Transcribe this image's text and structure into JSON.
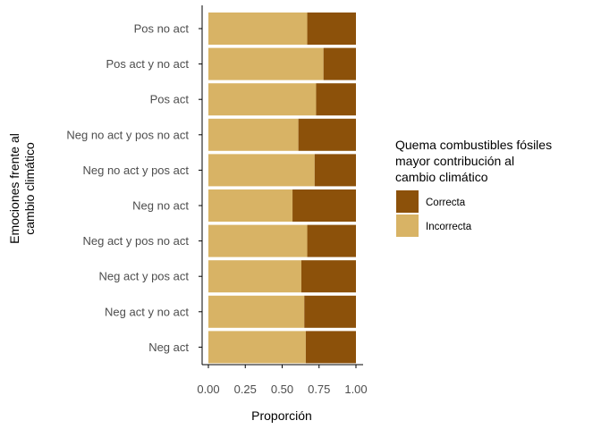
{
  "chart_data": {
    "type": "bar",
    "orientation": "horizontal",
    "stacked": true,
    "categories": [
      "Pos no act",
      "Pos act y no act",
      "Pos act",
      "Neg no act y pos no act",
      "Neg no act y pos act",
      "Neg no act",
      "Neg act y pos no act",
      "Neg act y pos act",
      "Neg act y no act",
      "Neg act"
    ],
    "series": [
      {
        "name": "Incorrecta",
        "color": "#D8B365",
        "values": [
          0.67,
          0.78,
          0.73,
          0.61,
          0.72,
          0.57,
          0.67,
          0.63,
          0.65,
          0.66
        ]
      },
      {
        "name": "Correcta",
        "color": "#8C510A",
        "values": [
          0.33,
          0.22,
          0.27,
          0.39,
          0.28,
          0.43,
          0.33,
          0.37,
          0.35,
          0.34
        ]
      }
    ],
    "xlabel": "Proporción",
    "ylabel_lines": [
      "Emociones frente al",
      "cambio climático"
    ],
    "xlim": [
      0,
      1
    ],
    "xticks": [
      "0.00",
      "0.25",
      "0.50",
      "0.75",
      "1.00"
    ],
    "grid": false,
    "legend": {
      "placement": "right",
      "title_lines": [
        "Quema combustibles fósiles",
        "mayor contribución al",
        "cambio climático"
      ],
      "entries": [
        {
          "label": "Correcta",
          "color": "#8C510A"
        },
        {
          "label": "Incorrecta",
          "color": "#D8B365"
        }
      ]
    }
  }
}
